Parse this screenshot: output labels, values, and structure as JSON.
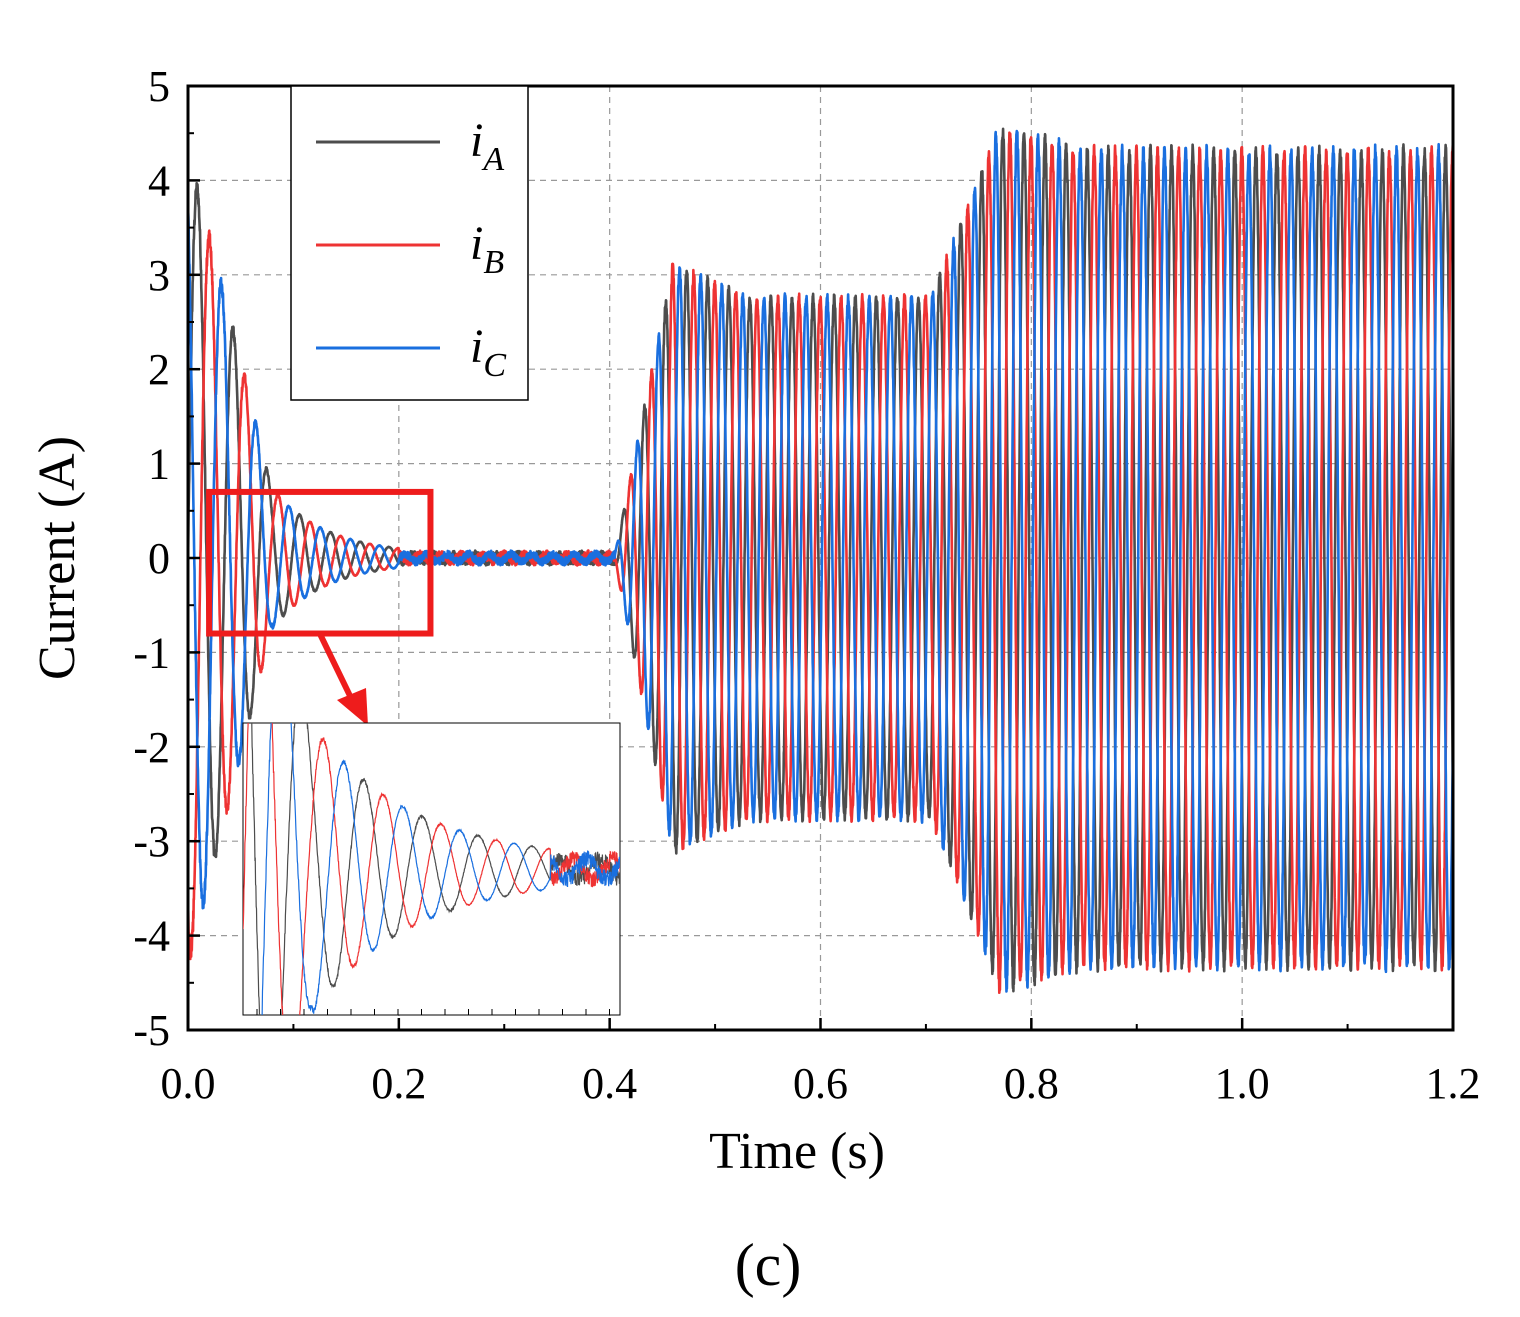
{
  "chart_data": {
    "type": "line",
    "xlabel": "Time (s)",
    "ylabel": "Current (A)",
    "xlim": [
      0.0,
      1.2
    ],
    "ylim": [
      -5,
      5
    ],
    "x_ticks": [
      "0.0",
      "0.2",
      "0.4",
      "0.6",
      "0.8",
      "1.0",
      "1.2"
    ],
    "y_ticks": [
      "5",
      "4",
      "3",
      "2",
      "1",
      "0",
      "-1",
      "-2",
      "-3",
      "-4",
      "-5"
    ],
    "grid": true,
    "legend_position": "top-left",
    "caption": "(c)",
    "series": [
      {
        "name": "i",
        "subscript": "A",
        "color": "#4d4d4d",
        "phase_deg": 0
      },
      {
        "name": "i",
        "subscript": "B",
        "color": "#ee3333",
        "phase_deg": -120
      },
      {
        "name": "i",
        "subscript": "C",
        "color": "#1a6fdf",
        "phase_deg": 120
      }
    ],
    "frequency_hz": 50,
    "envelope": {
      "description": "three-phase sinusoidal currents",
      "stages": [
        {
          "t_start": 0.0,
          "t_end": 0.05,
          "peak_amplitude": 4.3
        },
        {
          "t_start": 0.05,
          "t_end": 0.2,
          "peak_amplitude": 0.7
        },
        {
          "t_start": 0.2,
          "t_end": 0.4,
          "peak_amplitude": 0.05
        },
        {
          "t_start": 0.4,
          "t_end": 0.5,
          "peak_amplitude": 3.1
        },
        {
          "t_start": 0.5,
          "t_end": 0.7,
          "peak_amplitude": 2.75
        },
        {
          "t_start": 0.7,
          "t_end": 0.8,
          "peak_amplitude": 4.55
        },
        {
          "t_start": 0.8,
          "t_end": 1.2,
          "peak_amplitude": 4.3
        }
      ]
    },
    "zoom_region": {
      "x_range": [
        0.02,
        0.23
      ],
      "y_range": [
        -0.8,
        0.7
      ]
    }
  }
}
